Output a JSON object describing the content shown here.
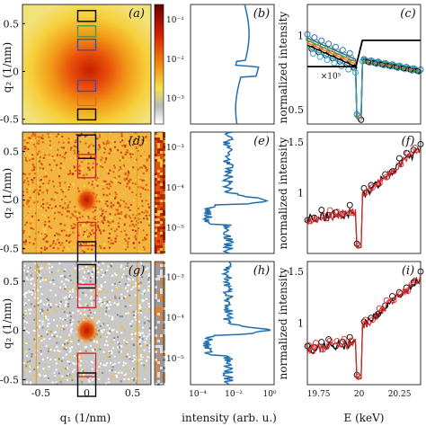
{
  "panels": [
    {
      "id": "a",
      "label": "(a)",
      "row": 0,
      "kind": "image",
      "style": "orange"
    },
    {
      "id": "b",
      "label": "(b)",
      "row": 0,
      "kind": "profile"
    },
    {
      "id": "c",
      "label": "(c)",
      "row": 0,
      "kind": "spectrum"
    },
    {
      "id": "d",
      "label": "(d)",
      "row": 1,
      "kind": "image",
      "style": "speckle-red"
    },
    {
      "id": "e",
      "label": "(e)",
      "row": 1,
      "kind": "profile"
    },
    {
      "id": "f",
      "label": "(f)",
      "row": 1,
      "kind": "spectrum"
    },
    {
      "id": "g",
      "label": "(g)",
      "row": 2,
      "kind": "image",
      "style": "speckle-gray"
    },
    {
      "id": "h",
      "label": "(h)",
      "row": 2,
      "kind": "profile"
    },
    {
      "id": "i",
      "label": "(i)",
      "row": 2,
      "kind": "spectrum"
    }
  ],
  "axes": {
    "image_ylabel": "q₂ (1/nm)",
    "image_xlabel": "q₁ (1/nm)",
    "image_yticks": [
      "0.5",
      "0",
      "-0.5"
    ],
    "image_xticks": [
      "-0.5",
      "0",
      "0.5"
    ],
    "profile_xlabel": "intensity (arb. u.)",
    "profile_xticks": [
      "10⁻⁴",
      "10⁻²",
      "10⁰"
    ],
    "spectrum_ylabel": "normalized intensity",
    "spectrum_xlabel": "E (keV)",
    "spectrum_xticks": [
      "19.75",
      "20",
      "20.25"
    ]
  },
  "colorbar_ticks": [
    [
      "10⁻¹",
      "10⁻²",
      "10⁻³"
    ],
    [
      "10⁻³",
      "10⁻⁴",
      "10⁻⁵"
    ],
    [
      "10⁻³",
      "10⁻⁴",
      "10⁻⁵"
    ]
  ],
  "spectrum_yticks": [
    [
      "1",
      "0.5"
    ],
    [
      "1.5",
      "1"
    ],
    [
      "1.5",
      "1"
    ]
  ],
  "annotation_c": "×10⁵",
  "colors": {
    "profile": "#1f6fb0",
    "black_box": "#000000",
    "red_box": "#d62728",
    "blue_box": "#3050c0",
    "orange_box": "#e07020",
    "green_box": "#40a040"
  },
  "chart_data": [
    {
      "panel": "b",
      "type": "line",
      "series": [
        {
          "values_y": [
            0.6,
            0.3,
            0,
            -0.3,
            -0.5
          ],
          "intensity": [
            0.002,
            0.003,
            0.2,
            0.003,
            0.002
          ]
        }
      ]
    },
    {
      "panel": "e",
      "type": "line",
      "series": [
        {
          "values_y": [
            0.6,
            0.3,
            0,
            -0.3,
            -0.5
          ],
          "intensity": [
            0.0003,
            0.0001,
            0.01,
            2e-05,
            0.0001
          ]
        }
      ]
    },
    {
      "panel": "h",
      "type": "line",
      "series": [
        {
          "values_y": [
            0.6,
            0.3,
            0,
            -0.3,
            -0.5
          ],
          "intensity": [
            0.0003,
            0.0002,
            0.02,
            5e-05,
            0.0002
          ]
        }
      ]
    }
  ]
}
